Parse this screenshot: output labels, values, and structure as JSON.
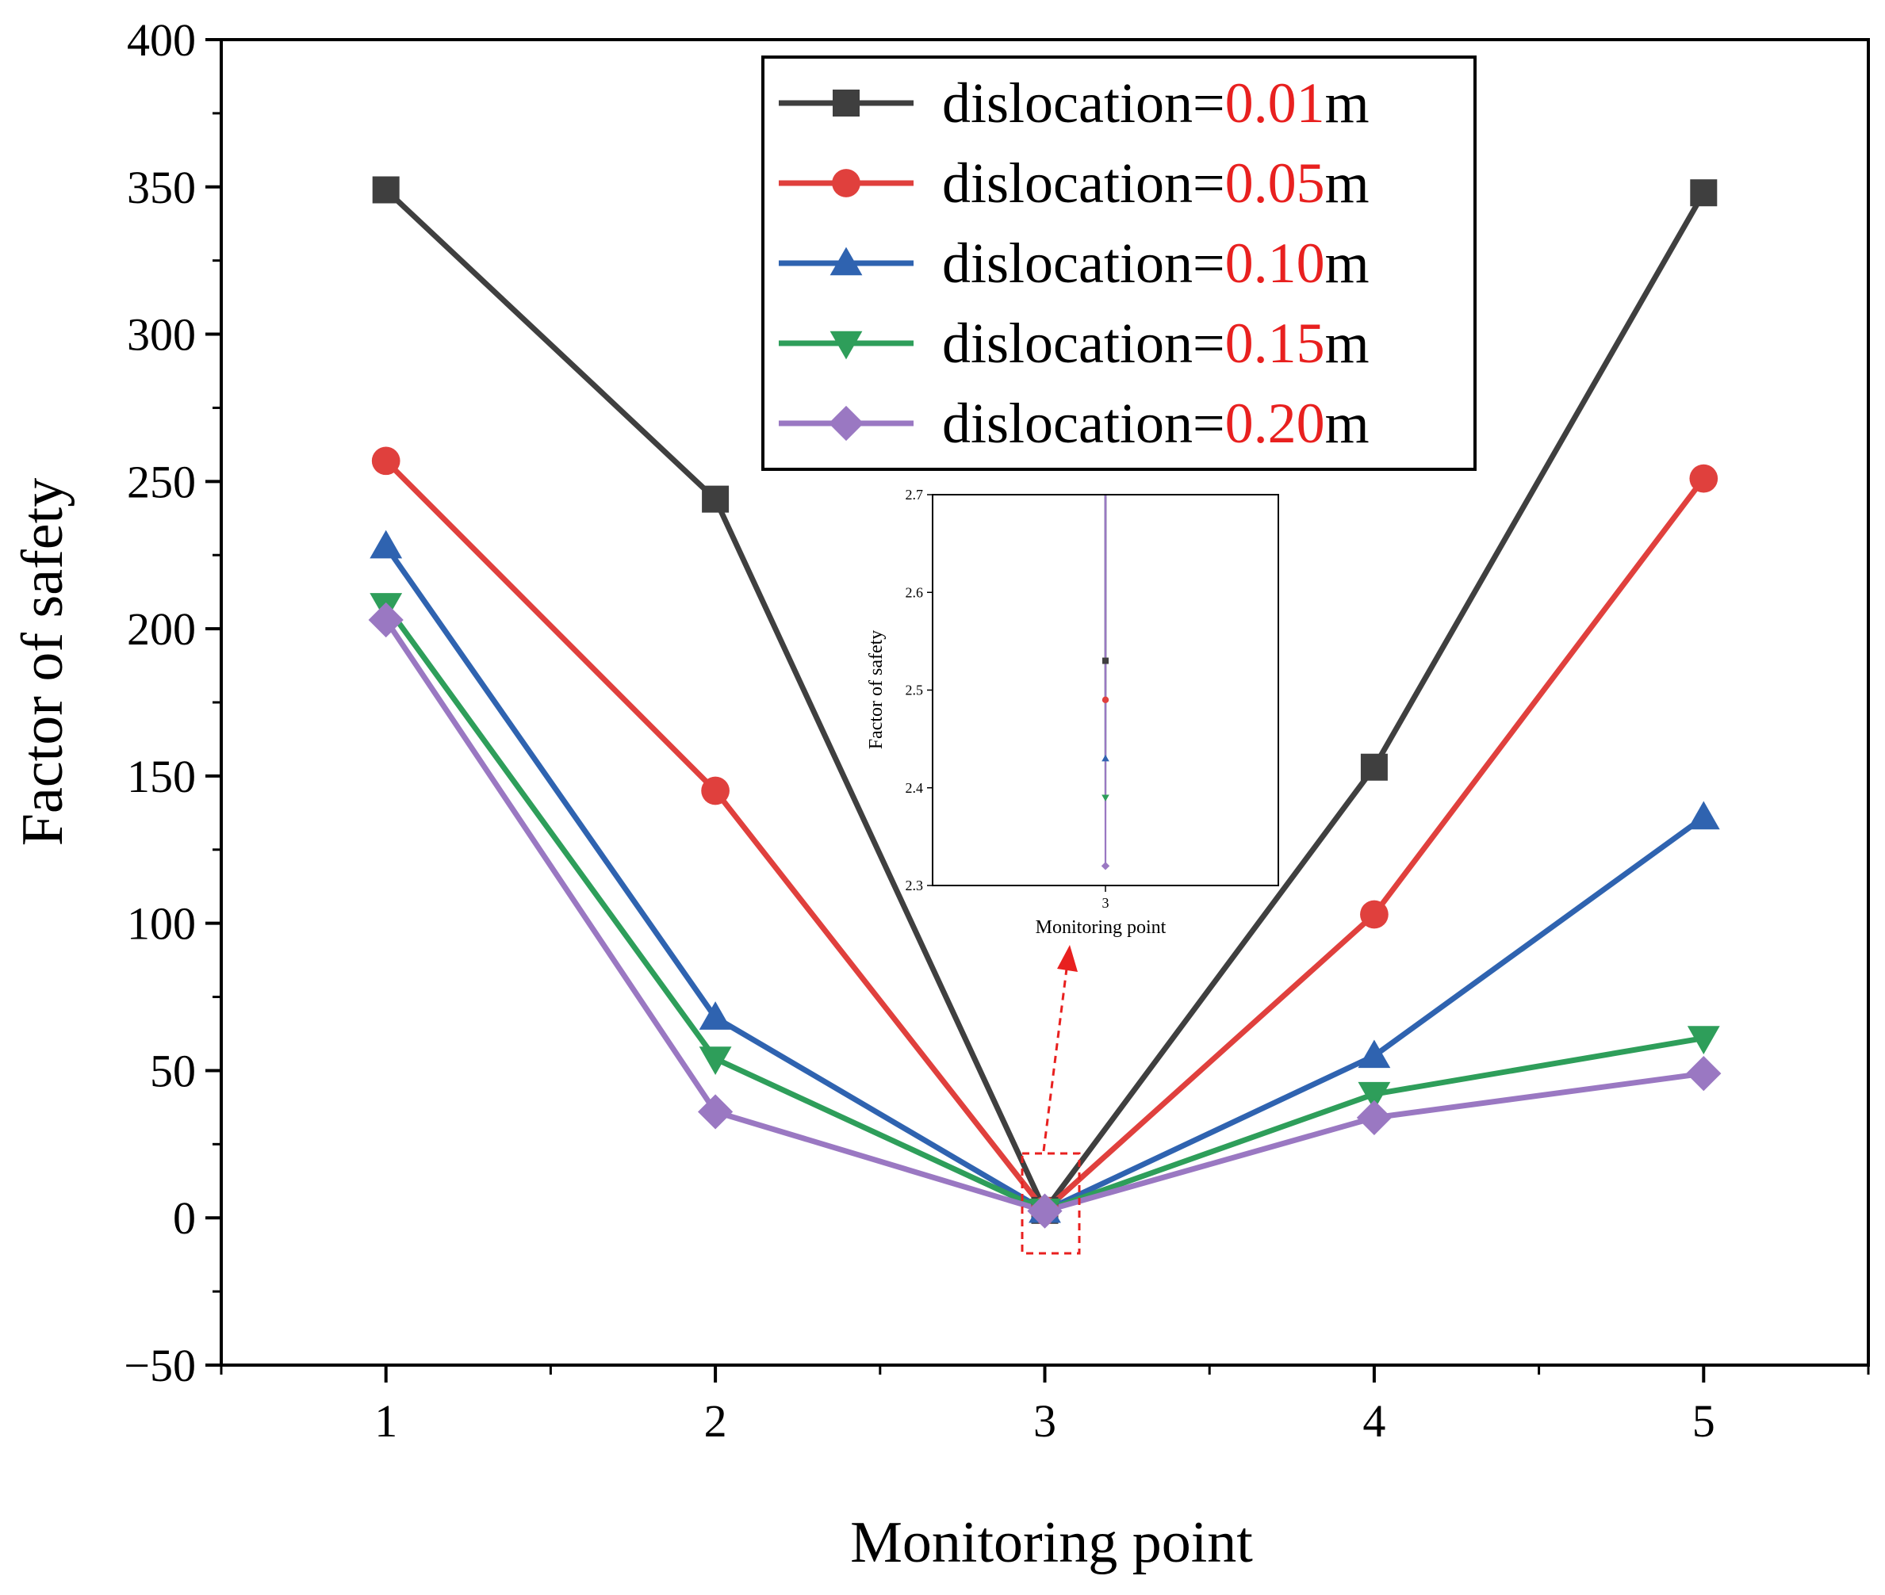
{
  "chart_data": {
    "type": "line",
    "xlabel": "Monitoring point",
    "ylabel": "Factor of safety",
    "x": [
      1,
      2,
      3,
      4,
      5
    ],
    "x_tick_labels": [
      "1",
      "2",
      "3",
      "4",
      "5"
    ],
    "xlim": [
      0.5,
      5.5
    ],
    "ylim": [
      -50,
      400
    ],
    "y_ticks": [
      -50,
      0,
      50,
      100,
      150,
      200,
      250,
      300,
      350,
      400
    ],
    "y_tick_labels": [
      "−50",
      "0",
      "50",
      "100",
      "150",
      "200",
      "250",
      "300",
      "350",
      "400"
    ],
    "legend_position": "top-right",
    "series": [
      {
        "name": "dislocation=0.01m",
        "legend_prefix": "dislocation=",
        "legend_value": "0.01",
        "legend_unit": "m",
        "marker": "square",
        "color": "#3f3f3f",
        "values": [
          349,
          244,
          2.53,
          153,
          348
        ]
      },
      {
        "name": "dislocation=0.05m",
        "legend_prefix": "dislocation=",
        "legend_value": "0.05",
        "legend_unit": "m",
        "marker": "circle",
        "color": "#e0403d",
        "values": [
          257,
          145,
          2.49,
          103,
          251
        ]
      },
      {
        "name": "dislocation=0.10m",
        "legend_prefix": "dislocation=",
        "legend_value": "0.10",
        "legend_unit": "m",
        "marker": "triangle-up",
        "color": "#2f63b0",
        "values": [
          228,
          68,
          2.43,
          55,
          136
        ]
      },
      {
        "name": "dislocation=0.15m",
        "legend_prefix": "dislocation=",
        "legend_value": "0.15",
        "legend_unit": "m",
        "marker": "triangle-down",
        "color": "#2e9e5a",
        "values": [
          208,
          54,
          2.39,
          42,
          61
        ]
      },
      {
        "name": "dislocation=0.20m",
        "legend_prefix": "dislocation=",
        "legend_value": "0.20",
        "legend_unit": "m",
        "marker": "diamond",
        "color": "#9a78c2",
        "values": [
          203,
          36,
          2.32,
          34,
          49
        ]
      }
    ],
    "legend_value_color": "#e8201f",
    "highlight_color": "#e8201f",
    "inset": {
      "xlabel": "Monitoring point",
      "ylabel": "Factor of safety",
      "x_tick_label": "3",
      "ylim": [
        2.3,
        2.7
      ],
      "y_ticks": [
        2.3,
        2.4,
        2.5,
        2.6,
        2.7
      ],
      "y_tick_labels": [
        "2.3",
        "2.4",
        "2.5",
        "2.6",
        "2.7"
      ]
    }
  }
}
